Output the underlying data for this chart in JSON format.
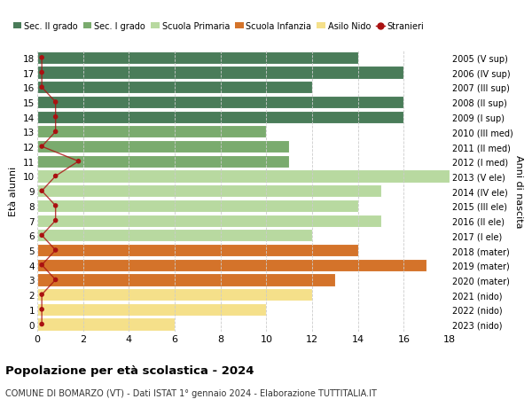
{
  "ages": [
    18,
    17,
    16,
    15,
    14,
    13,
    12,
    11,
    10,
    9,
    8,
    7,
    6,
    5,
    4,
    3,
    2,
    1,
    0
  ],
  "labels_right": [
    "2005 (V sup)",
    "2006 (IV sup)",
    "2007 (III sup)",
    "2008 (II sup)",
    "2009 (I sup)",
    "2010 (III med)",
    "2011 (II med)",
    "2012 (I med)",
    "2013 (V ele)",
    "2014 (IV ele)",
    "2015 (III ele)",
    "2016 (II ele)",
    "2017 (I ele)",
    "2018 (mater)",
    "2019 (mater)",
    "2020 (mater)",
    "2021 (nido)",
    "2022 (nido)",
    "2023 (nido)"
  ],
  "bar_values": [
    14,
    16,
    12,
    16,
    16,
    10,
    11,
    11,
    18,
    15,
    14,
    15,
    12,
    14,
    17,
    13,
    12,
    10,
    6
  ],
  "bar_colors": [
    "#4a7c59",
    "#4a7c59",
    "#4a7c59",
    "#4a7c59",
    "#4a7c59",
    "#7aab6e",
    "#7aab6e",
    "#7aab6e",
    "#b8d9a0",
    "#b8d9a0",
    "#b8d9a0",
    "#b8d9a0",
    "#b8d9a0",
    "#d4732a",
    "#d4732a",
    "#d4732a",
    "#f5e08a",
    "#f5e08a",
    "#f5e08a"
  ],
  "stranieri_x": [
    0.2,
    0.2,
    0.2,
    0.8,
    0.8,
    0.8,
    0.2,
    1.8,
    0.8,
    0.2,
    0.8,
    0.8,
    0.2,
    0.8,
    0.2,
    0.8,
    0.2,
    0.2,
    0.2
  ],
  "xlim": [
    0,
    18
  ],
  "ylim": [
    -0.5,
    18.5
  ],
  "ylabel_left": "Età alunni",
  "ylabel_right": "Anni di nascita",
  "title": "Popolazione per età scolastica - 2024",
  "subtitle": "COMUNE DI BOMARZO (VT) - Dati ISTAT 1° gennaio 2024 - Elaborazione TUTTITALIA.IT",
  "legend_labels": [
    "Sec. II grado",
    "Sec. I grado",
    "Scuola Primaria",
    "Scuola Infanzia",
    "Asilo Nido",
    "Stranieri"
  ],
  "legend_colors": [
    "#4a7c59",
    "#7aab6e",
    "#b8d9a0",
    "#d4732a",
    "#f5e08a",
    "#aa1111"
  ],
  "bar_height": 0.85,
  "bg_color": "#ffffff",
  "grid_color": "#cccccc",
  "xticks": [
    0,
    2,
    4,
    6,
    8,
    10,
    12,
    14,
    16,
    18
  ]
}
